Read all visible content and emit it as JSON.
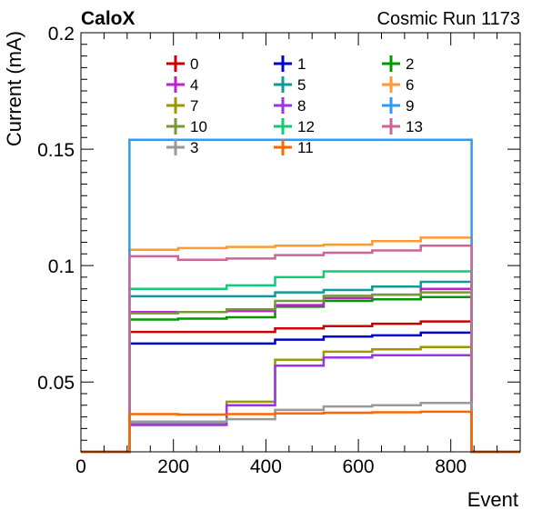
{
  "chart_data": {
    "type": "line",
    "top_left_label": "CaloX",
    "top_right_label": "Cosmic Run 1173",
    "xlabel": "Event",
    "ylabel": "Current (mA)",
    "xlim": [
      0,
      950
    ],
    "ylim": [
      0.02,
      0.2
    ],
    "x_ticks": [
      "0",
      "200",
      "400",
      "600",
      "800"
    ],
    "y_ticks": [
      "0.05",
      "0.1",
      "0.15",
      "0.2"
    ],
    "bin_edges": [
      105,
      210,
      315,
      420,
      525,
      630,
      735,
      845
    ],
    "legend_position": "top-center",
    "series": [
      {
        "name": "0",
        "color": "#cc0000",
        "values": [
          0.0715,
          0.0715,
          0.0715,
          0.073,
          0.074,
          0.075,
          0.076
        ]
      },
      {
        "name": "1",
        "color": "#0000cc",
        "values": [
          0.0665,
          0.0665,
          0.0665,
          0.0682,
          0.0695,
          0.07,
          0.0712
        ]
      },
      {
        "name": "2",
        "color": "#009900",
        "values": [
          0.0768,
          0.0772,
          0.0778,
          0.0823,
          0.0848,
          0.0855,
          0.0865
        ]
      },
      {
        "name": "4",
        "color": "#bb22cc",
        "values": [
          0.08,
          0.08,
          0.0805,
          0.083,
          0.086,
          0.0875,
          0.09
        ]
      },
      {
        "name": "5",
        "color": "#119999",
        "values": [
          0.0868,
          0.0868,
          0.0868,
          0.0885,
          0.0895,
          0.091,
          0.093
        ]
      },
      {
        "name": "6",
        "color": "#ff9933",
        "values": [
          0.1068,
          0.1075,
          0.108,
          0.1085,
          0.109,
          0.1105,
          0.112
        ]
      },
      {
        "name": "7",
        "color": "#999900",
        "values": [
          0.032,
          0.032,
          0.0415,
          0.0595,
          0.063,
          0.064,
          0.065
        ]
      },
      {
        "name": "8",
        "color": "#9933ee",
        "values": [
          0.0315,
          0.0315,
          0.04,
          0.057,
          0.0605,
          0.0615,
          0.0615
        ]
      },
      {
        "name": "9",
        "color": "#3399ee",
        "values": [
          0.154,
          0.154,
          0.154,
          0.154,
          0.154,
          0.154,
          0.154
        ]
      },
      {
        "name": "10",
        "color": "#779933",
        "values": [
          0.0795,
          0.08,
          0.0812,
          0.0848,
          0.087,
          0.0875,
          0.0885
        ]
      },
      {
        "name": "12",
        "color": "#11cc77",
        "values": [
          0.09,
          0.09,
          0.0915,
          0.095,
          0.0975,
          0.0975,
          0.0975
        ]
      },
      {
        "name": "13",
        "color": "#cc6699",
        "values": [
          0.104,
          0.1025,
          0.103,
          0.1045,
          0.1055,
          0.1065,
          0.1085
        ]
      },
      {
        "name": "3",
        "color": "#999999",
        "values": [
          0.033,
          0.033,
          0.034,
          0.038,
          0.0395,
          0.04,
          0.041
        ]
      },
      {
        "name": "11",
        "color": "#ff6600",
        "values": [
          0.0362,
          0.036,
          0.0362,
          0.0365,
          0.0368,
          0.037,
          0.0372
        ]
      }
    ]
  }
}
